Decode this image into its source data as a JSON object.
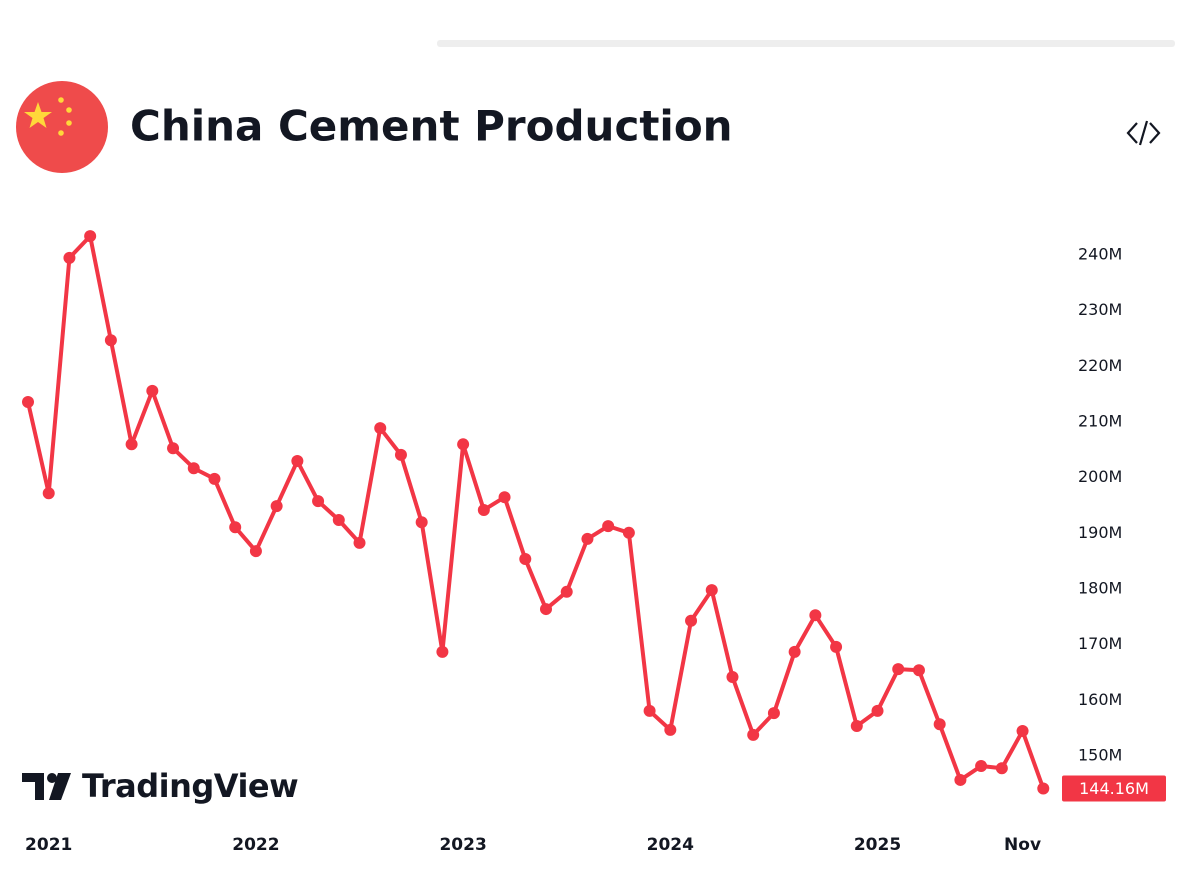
{
  "brand": "TradingView",
  "chart_data": {
    "type": "line",
    "title": "China Cement Production",
    "categories": [
      null,
      "2021",
      null,
      null,
      null,
      null,
      null,
      null,
      null,
      null,
      null,
      "2022",
      null,
      null,
      null,
      null,
      null,
      null,
      null,
      null,
      null,
      "2023",
      null,
      null,
      null,
      null,
      null,
      null,
      null,
      null,
      null,
      "2024",
      null,
      null,
      null,
      null,
      null,
      null,
      null,
      null,
      null,
      "2025",
      null,
      null,
      null,
      null,
      null,
      null,
      "Nov",
      null
    ],
    "series": [
      {
        "name": "China Cement Production",
        "color": "#f23645",
        "values": [
          213.6,
          197.2,
          239.5,
          243.4,
          224.7,
          206.0,
          215.6,
          205.3,
          201.7,
          199.8,
          191.1,
          186.8,
          194.9,
          203.0,
          195.8,
          192.4,
          188.3,
          208.9,
          204.1,
          192.0,
          168.7,
          206.0,
          194.2,
          196.5,
          185.4,
          176.4,
          179.5,
          189.0,
          191.3,
          190.1,
          158.1,
          154.7,
          174.3,
          179.8,
          164.2,
          153.8,
          157.7,
          168.7,
          175.3,
          169.6,
          155.4,
          158.1,
          165.6,
          165.4,
          155.7,
          145.7,
          148.2,
          147.8,
          154.5,
          144.16
        ],
        "value_labels": [
          null,
          null,
          null,
          null,
          null,
          null,
          null,
          null,
          null,
          null,
          null,
          null,
          null,
          null,
          null,
          null,
          null,
          null,
          null,
          null,
          null,
          null,
          null,
          null,
          null,
          null,
          null,
          null,
          null,
          null,
          null,
          null,
          null,
          null,
          null,
          null,
          null,
          null,
          null,
          null,
          null,
          null,
          null,
          null,
          null,
          null,
          null,
          null,
          null,
          "144.16M"
        ]
      }
    ],
    "ylim": [
      140.3,
      246.3
    ],
    "yticks": [
      {
        "value": 150,
        "label": "150M"
      },
      {
        "value": 160,
        "label": "160M"
      },
      {
        "value": 170,
        "label": "170M"
      },
      {
        "value": 180,
        "label": "180M"
      },
      {
        "value": 190,
        "label": "190M"
      },
      {
        "value": 200,
        "label": "200M"
      },
      {
        "value": 210,
        "label": "210M"
      },
      {
        "value": 220,
        "label": "220M"
      },
      {
        "value": 230,
        "label": "230M"
      },
      {
        "value": 240,
        "label": "240M"
      }
    ],
    "grid": false
  }
}
